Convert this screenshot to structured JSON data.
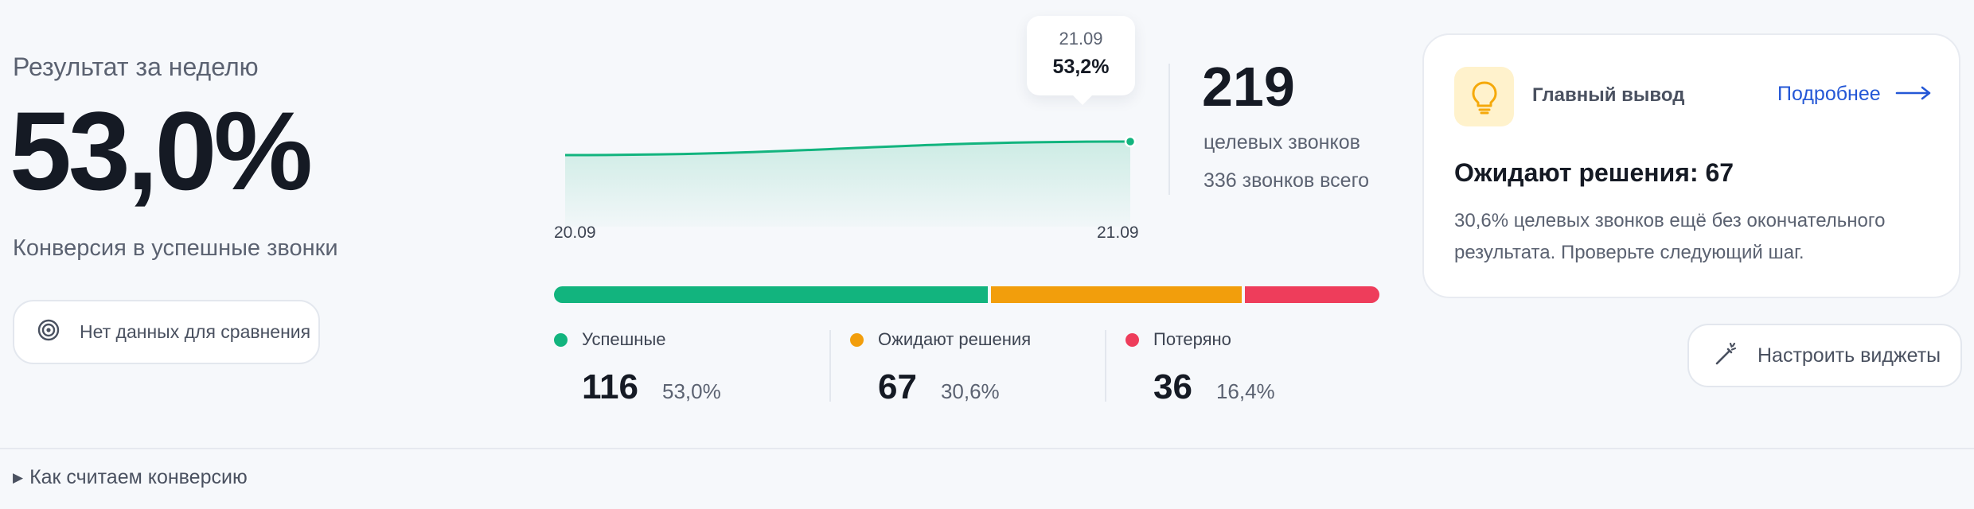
{
  "summary": {
    "period_title": "Результат за неделю",
    "conversion_value": "53,0%",
    "conversion_label": "Конверсия в успешные звонки",
    "no_comparison_label": "Нет данных для сравнения"
  },
  "chart": {
    "tooltip_date": "21.09",
    "tooltip_value": "53,2%",
    "chart_data": {
      "type": "area",
      "x": [
        "20.09",
        "21.09"
      ],
      "series": [
        {
          "values": [
            51.5,
            53.2
          ]
        }
      ],
      "xlabels": [
        "20.09",
        "21.09"
      ]
    }
  },
  "totals": {
    "target_calls": "219",
    "target_calls_label": "целевых звонков",
    "all_calls_label": "336 звонков всего"
  },
  "breakdown": [
    {
      "label": "Успешные",
      "count": "116",
      "percent": "53,0%",
      "share": 0.53,
      "color": "#12b47e"
    },
    {
      "label": "Ожидают решения",
      "count": "67",
      "percent": "30,6%",
      "share": 0.306,
      "color": "#f29e0c"
    },
    {
      "label": "Потеряно",
      "count": "36",
      "percent": "16,4%",
      "share": 0.164,
      "color": "#ee3d5b"
    }
  ],
  "insight": {
    "title": "Главный вывод",
    "more_link": "Подробнее",
    "headline": "Ожидают решения: 67",
    "body": "30,6% целевых звонков ещё без окончательного результата. Проверьте следующий шаг.",
    "icon": "lightbulb-icon"
  },
  "actions": {
    "configure_label": "Настроить виджеты"
  },
  "footer": {
    "how_label": "Как считаем конверсию"
  },
  "colors": {
    "accent": "#12b47e",
    "link": "#2457d6",
    "bulb_bg": "#fff2cc",
    "bulb": "#f5a90b"
  }
}
